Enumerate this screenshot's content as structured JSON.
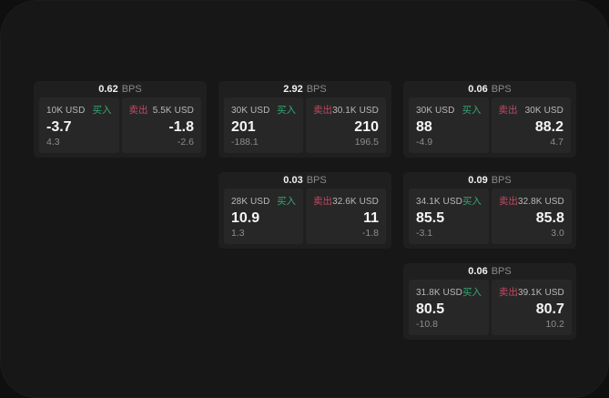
{
  "colors": {
    "panel_bg": "#171717",
    "card_bg": "#1f1f1f",
    "pane_bg": "#272727",
    "buy_green": "#35a871",
    "sell_red": "#c04a62"
  },
  "cards": [
    {
      "bps": "0.62",
      "unit": "BPS",
      "buy": {
        "size": "10K USD",
        "label": "买入",
        "price": "-3.7",
        "delta": "4.3"
      },
      "sell": {
        "label": "卖出",
        "size": "5.5K USD",
        "price": "-1.8",
        "delta": "-2.6"
      }
    },
    {
      "bps": "2.92",
      "unit": "BPS",
      "buy": {
        "size": "30K USD",
        "label": "买入",
        "price": "201",
        "delta": "-188.1"
      },
      "sell": {
        "label": "卖出",
        "size": "30.1K USD",
        "price": "210",
        "delta": "196.5"
      }
    },
    {
      "bps": "0.06",
      "unit": "BPS",
      "buy": {
        "size": "30K USD",
        "label": "买入",
        "price": "88",
        "delta": "-4.9"
      },
      "sell": {
        "label": "卖出",
        "size": "30K USD",
        "price": "88.2",
        "delta": "4.7"
      }
    },
    {
      "bps": "0.03",
      "unit": "BPS",
      "buy": {
        "size": "28K USD",
        "label": "买入",
        "price": "10.9",
        "delta": "1.3"
      },
      "sell": {
        "label": "卖出",
        "size": "32.6K USD",
        "price": "11",
        "delta": "-1.8"
      }
    },
    {
      "bps": "0.09",
      "unit": "BPS",
      "buy": {
        "size": "34.1K USD",
        "label": "买入",
        "price": "85.5",
        "delta": "-3.1"
      },
      "sell": {
        "label": "卖出",
        "size": "32.8K USD",
        "price": "85.8",
        "delta": "3.0"
      }
    },
    {
      "bps": "0.06",
      "unit": "BPS",
      "buy": {
        "size": "31.8K USD",
        "label": "买入",
        "price": "80.5",
        "delta": "-10.8"
      },
      "sell": {
        "label": "卖出",
        "size": "39.1K USD",
        "price": "80.7",
        "delta": "10.2"
      }
    }
  ]
}
